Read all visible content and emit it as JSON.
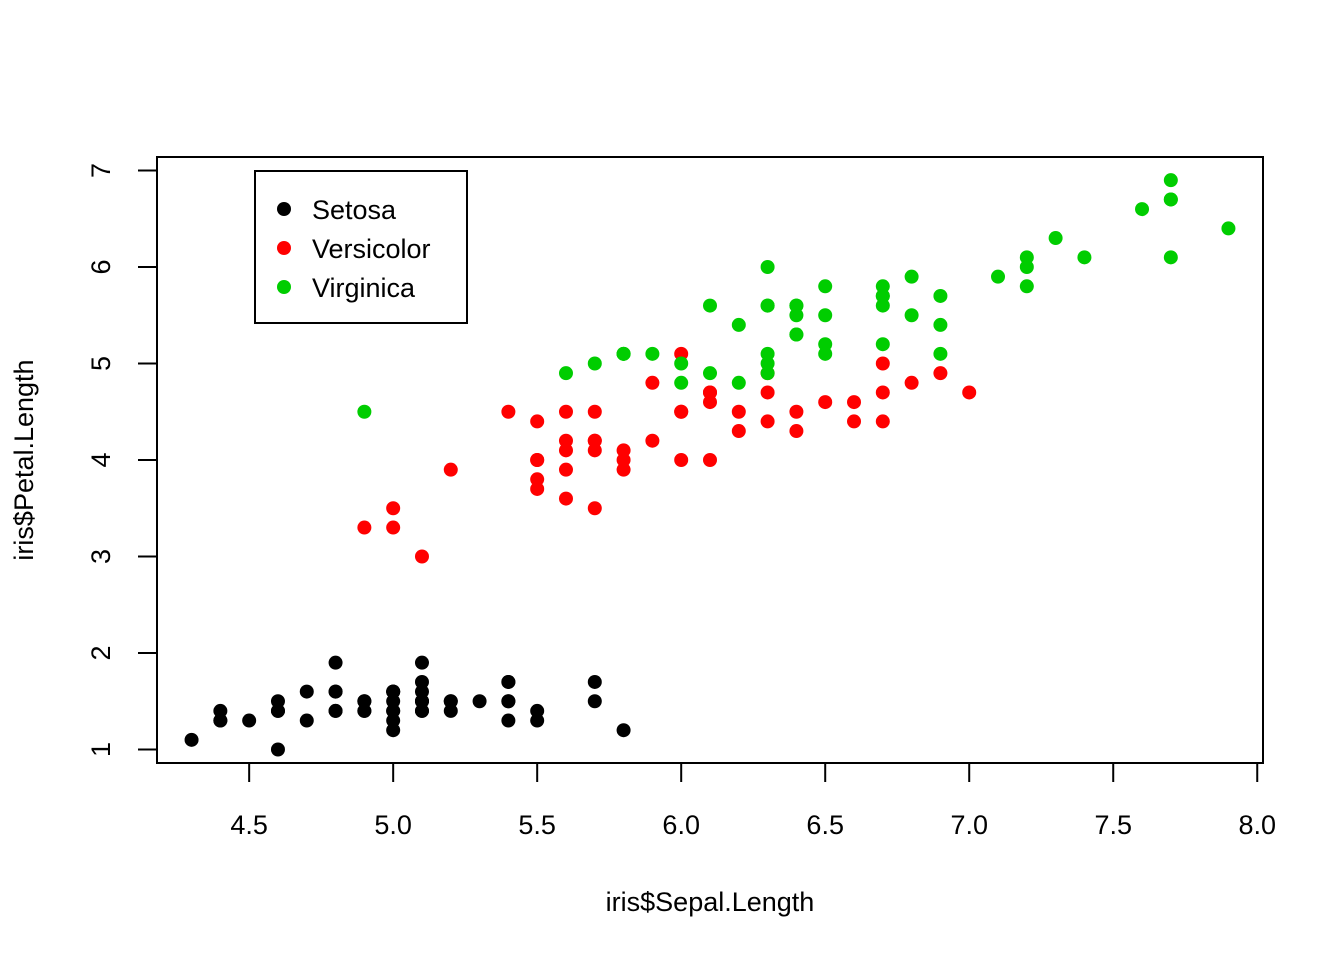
{
  "chart_data": {
    "type": "scatter",
    "xlabel": "iris$Sepal.Length",
    "ylabel": "iris$Petal.Length",
    "xlim": [
      4.18,
      8.02
    ],
    "ylim": [
      0.86,
      7.14
    ],
    "x_ticks": [
      4.5,
      5.0,
      5.5,
      6.0,
      6.5,
      7.0,
      7.5,
      8.0
    ],
    "x_tick_labels": [
      "4.5",
      "5.0",
      "5.5",
      "6.0",
      "6.5",
      "7.0",
      "7.5",
      "8.0"
    ],
    "y_ticks": [
      1,
      2,
      3,
      4,
      5,
      6,
      7
    ],
    "y_tick_labels": [
      "1",
      "2",
      "3",
      "4",
      "5",
      "6",
      "7"
    ],
    "grid": false,
    "legend_position": "top-left",
    "series": [
      {
        "name": "Setosa",
        "color": "#000000",
        "points": [
          [
            5.1,
            1.4
          ],
          [
            4.9,
            1.4
          ],
          [
            4.7,
            1.3
          ],
          [
            4.6,
            1.5
          ],
          [
            5.0,
            1.4
          ],
          [
            5.4,
            1.7
          ],
          [
            4.6,
            1.4
          ],
          [
            5.0,
            1.5
          ],
          [
            4.4,
            1.4
          ],
          [
            4.9,
            1.5
          ],
          [
            5.4,
            1.5
          ],
          [
            4.8,
            1.6
          ],
          [
            4.8,
            1.4
          ],
          [
            4.3,
            1.1
          ],
          [
            5.8,
            1.2
          ],
          [
            5.7,
            1.5
          ],
          [
            5.4,
            1.3
          ],
          [
            5.1,
            1.4
          ],
          [
            5.7,
            1.7
          ],
          [
            5.1,
            1.5
          ],
          [
            5.4,
            1.7
          ],
          [
            5.1,
            1.5
          ],
          [
            4.6,
            1.0
          ],
          [
            5.1,
            1.7
          ],
          [
            4.8,
            1.9
          ],
          [
            5.0,
            1.6
          ],
          [
            5.0,
            1.6
          ],
          [
            5.2,
            1.5
          ],
          [
            5.2,
            1.4
          ],
          [
            4.7,
            1.6
          ],
          [
            4.8,
            1.6
          ],
          [
            5.4,
            1.5
          ],
          [
            5.2,
            1.5
          ],
          [
            5.5,
            1.4
          ],
          [
            4.9,
            1.5
          ],
          [
            5.0,
            1.2
          ],
          [
            5.5,
            1.3
          ],
          [
            4.9,
            1.4
          ],
          [
            4.4,
            1.3
          ],
          [
            5.1,
            1.5
          ],
          [
            5.0,
            1.3
          ],
          [
            4.5,
            1.3
          ],
          [
            4.4,
            1.3
          ],
          [
            5.0,
            1.6
          ],
          [
            5.1,
            1.9
          ],
          [
            4.8,
            1.4
          ],
          [
            5.1,
            1.6
          ],
          [
            4.6,
            1.4
          ],
          [
            5.3,
            1.5
          ],
          [
            5.0,
            1.4
          ]
        ]
      },
      {
        "name": "Versicolor",
        "color": "#ff0000",
        "points": [
          [
            7.0,
            4.7
          ],
          [
            6.4,
            4.5
          ],
          [
            6.9,
            4.9
          ],
          [
            5.5,
            4.0
          ],
          [
            6.5,
            4.6
          ],
          [
            5.7,
            4.5
          ],
          [
            6.3,
            4.7
          ],
          [
            4.9,
            3.3
          ],
          [
            6.6,
            4.6
          ],
          [
            5.2,
            3.9
          ],
          [
            5.0,
            3.5
          ],
          [
            5.9,
            4.2
          ],
          [
            6.0,
            4.0
          ],
          [
            6.1,
            4.7
          ],
          [
            5.6,
            3.6
          ],
          [
            6.7,
            4.4
          ],
          [
            5.6,
            4.5
          ],
          [
            5.8,
            4.1
          ],
          [
            6.2,
            4.5
          ],
          [
            5.6,
            3.9
          ],
          [
            5.9,
            4.8
          ],
          [
            6.1,
            4.0
          ],
          [
            6.3,
            4.9
          ],
          [
            6.1,
            4.7
          ],
          [
            6.4,
            4.3
          ],
          [
            6.6,
            4.4
          ],
          [
            6.8,
            4.8
          ],
          [
            6.7,
            5.0
          ],
          [
            6.0,
            4.5
          ],
          [
            5.7,
            3.5
          ],
          [
            5.5,
            3.8
          ],
          [
            5.5,
            3.7
          ],
          [
            5.8,
            3.9
          ],
          [
            6.0,
            5.1
          ],
          [
            5.4,
            4.5
          ],
          [
            6.0,
            4.5
          ],
          [
            6.7,
            4.7
          ],
          [
            6.3,
            4.4
          ],
          [
            5.6,
            4.1
          ],
          [
            5.5,
            4.0
          ],
          [
            5.5,
            4.4
          ],
          [
            6.1,
            4.6
          ],
          [
            5.8,
            4.0
          ],
          [
            5.0,
            3.3
          ],
          [
            5.6,
            4.2
          ],
          [
            5.7,
            4.2
          ],
          [
            5.7,
            4.2
          ],
          [
            6.2,
            4.3
          ],
          [
            5.1,
            3.0
          ],
          [
            5.7,
            4.1
          ]
        ]
      },
      {
        "name": "Virginica",
        "color": "#00cd00",
        "points": [
          [
            6.3,
            6.0
          ],
          [
            5.8,
            5.1
          ],
          [
            7.1,
            5.9
          ],
          [
            6.3,
            5.6
          ],
          [
            6.5,
            5.8
          ],
          [
            7.6,
            6.6
          ],
          [
            4.9,
            4.5
          ],
          [
            7.3,
            6.3
          ],
          [
            6.7,
            5.8
          ],
          [
            7.2,
            6.1
          ],
          [
            6.5,
            5.1
          ],
          [
            6.4,
            5.3
          ],
          [
            6.8,
            5.5
          ],
          [
            5.7,
            5.0
          ],
          [
            5.8,
            5.1
          ],
          [
            6.4,
            5.3
          ],
          [
            6.5,
            5.5
          ],
          [
            7.7,
            6.7
          ],
          [
            7.7,
            6.9
          ],
          [
            6.0,
            5.0
          ],
          [
            6.9,
            5.7
          ],
          [
            5.6,
            4.9
          ],
          [
            7.7,
            6.7
          ],
          [
            6.3,
            4.9
          ],
          [
            6.7,
            5.7
          ],
          [
            7.2,
            6.0
          ],
          [
            6.2,
            4.8
          ],
          [
            6.1,
            4.9
          ],
          [
            6.4,
            5.6
          ],
          [
            7.2,
            5.8
          ],
          [
            7.4,
            6.1
          ],
          [
            7.9,
            6.4
          ],
          [
            6.4,
            5.6
          ],
          [
            6.3,
            5.1
          ],
          [
            6.1,
            5.6
          ],
          [
            7.7,
            6.1
          ],
          [
            6.3,
            5.6
          ],
          [
            6.4,
            5.5
          ],
          [
            6.0,
            4.8
          ],
          [
            6.9,
            5.4
          ],
          [
            6.7,
            5.6
          ],
          [
            6.9,
            5.1
          ],
          [
            5.8,
            5.1
          ],
          [
            6.8,
            5.9
          ],
          [
            6.7,
            5.7
          ],
          [
            6.7,
            5.2
          ],
          [
            6.3,
            5.0
          ],
          [
            6.5,
            5.2
          ],
          [
            6.2,
            5.4
          ],
          [
            5.9,
            5.1
          ]
        ]
      }
    ]
  }
}
